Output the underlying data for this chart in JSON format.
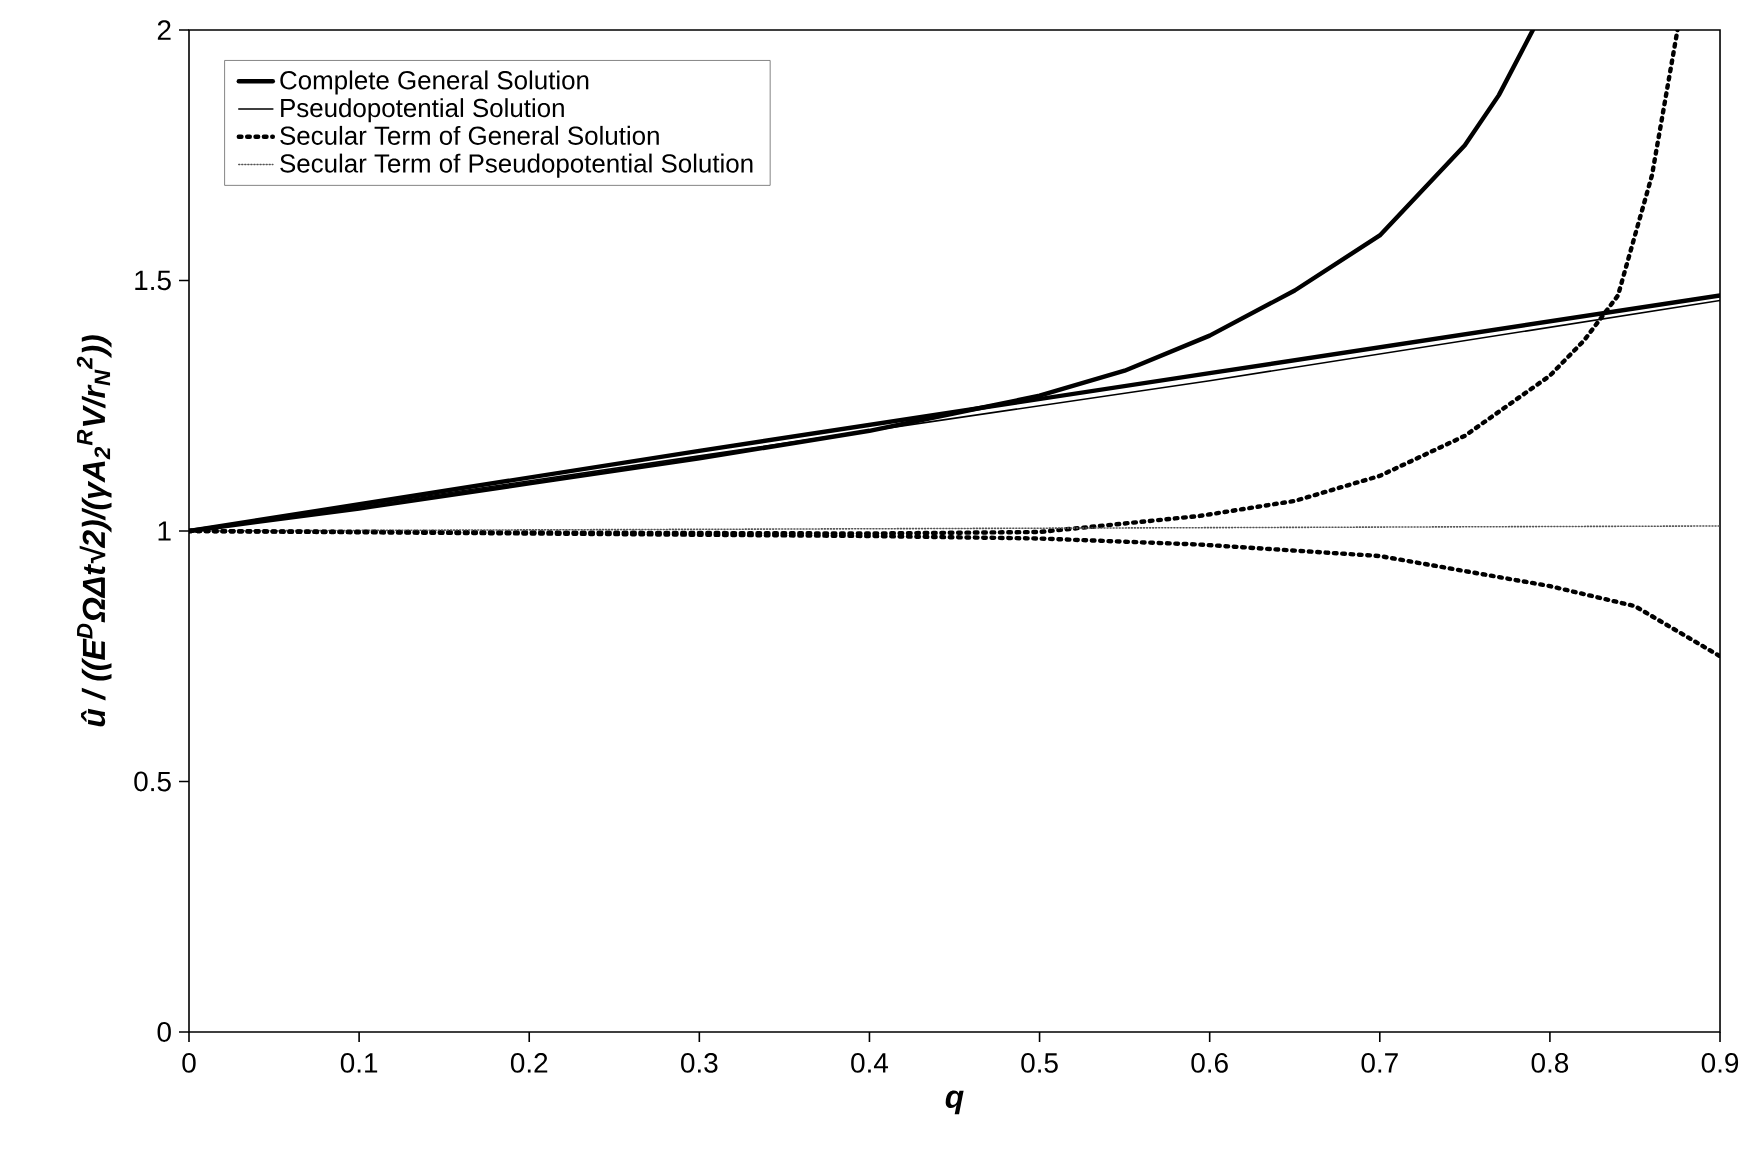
{
  "chart_data": {
    "type": "line",
    "xlabel": "q",
    "ylabel": "û / ((E$^{D}$ΩΔt√2)/(γA$_{2}$$^{R}$V/r$_{N}$$^{2}$))",
    "xlim": [
      0,
      0.9
    ],
    "ylim": [
      0,
      2
    ],
    "xticks": [
      0,
      0.1,
      0.2,
      0.3,
      0.4,
      0.5,
      0.6,
      0.7,
      0.8,
      0.9
    ],
    "yticks": [
      0,
      0.5,
      1,
      1.5,
      2
    ],
    "grid": false,
    "legend": "top left",
    "marker": "none",
    "series": [
      {
        "name": "Complete General Solution",
        "color": "#000000",
        "line_style": "solid",
        "x": [
          0,
          0.1,
          0.2,
          0.3,
          0.4,
          0.45,
          0.5,
          0.55,
          0.6,
          0.65,
          0.7,
          0.75,
          0.77,
          0.79
        ],
        "values": [
          1,
          1.045,
          1.095,
          1.145,
          1.2,
          1.235,
          1.27,
          1.32,
          1.39,
          1.48,
          1.59,
          1.77,
          1.87,
          2.0
        ]
      },
      {
        "name": "Pseudopotential Solution",
        "color": "#000000",
        "line_style": "solid",
        "x": [
          0,
          0.3,
          0.6,
          0.9
        ],
        "values": [
          1,
          1.15,
          1.3,
          1.46
        ]
      },
      {
        "name": "Secular Term of General Solution",
        "color": "#000000",
        "line_style": "dotted",
        "x": [
          0,
          0.2,
          0.4,
          0.5,
          0.594,
          0.65,
          0.7,
          0.75,
          0.8,
          0.82,
          0.84,
          0.86,
          0.875
        ],
        "values": [
          1,
          0.997,
          0.995,
          0.998,
          1.03,
          1.06,
          1.11,
          1.19,
          1.31,
          1.38,
          1.47,
          1.71,
          2.0
        ]
      },
      {
        "name": "Secular Term of Pseudopotential Solution",
        "color": "#555555",
        "line_style": "dotted",
        "x": [
          0,
          0.45,
          0.9
        ],
        "values": [
          1,
          1.005,
          1.01
        ]
      },
      {
        "color": "#000000",
        "line_style": "solid",
        "x": [
          0,
          0.3,
          0.6,
          0.9
        ],
        "values": [
          1,
          1.16,
          1.315,
          1.47
        ]
      },
      {
        "color": "#000000",
        "line_style": "dotted",
        "x": [
          0,
          0.2,
          0.4,
          0.5,
          0.594,
          0.7,
          0.8,
          0.85,
          0.9
        ],
        "values": [
          1,
          0.995,
          0.99,
          0.985,
          0.973,
          0.95,
          0.89,
          0.85,
          0.75
        ]
      }
    ]
  }
}
